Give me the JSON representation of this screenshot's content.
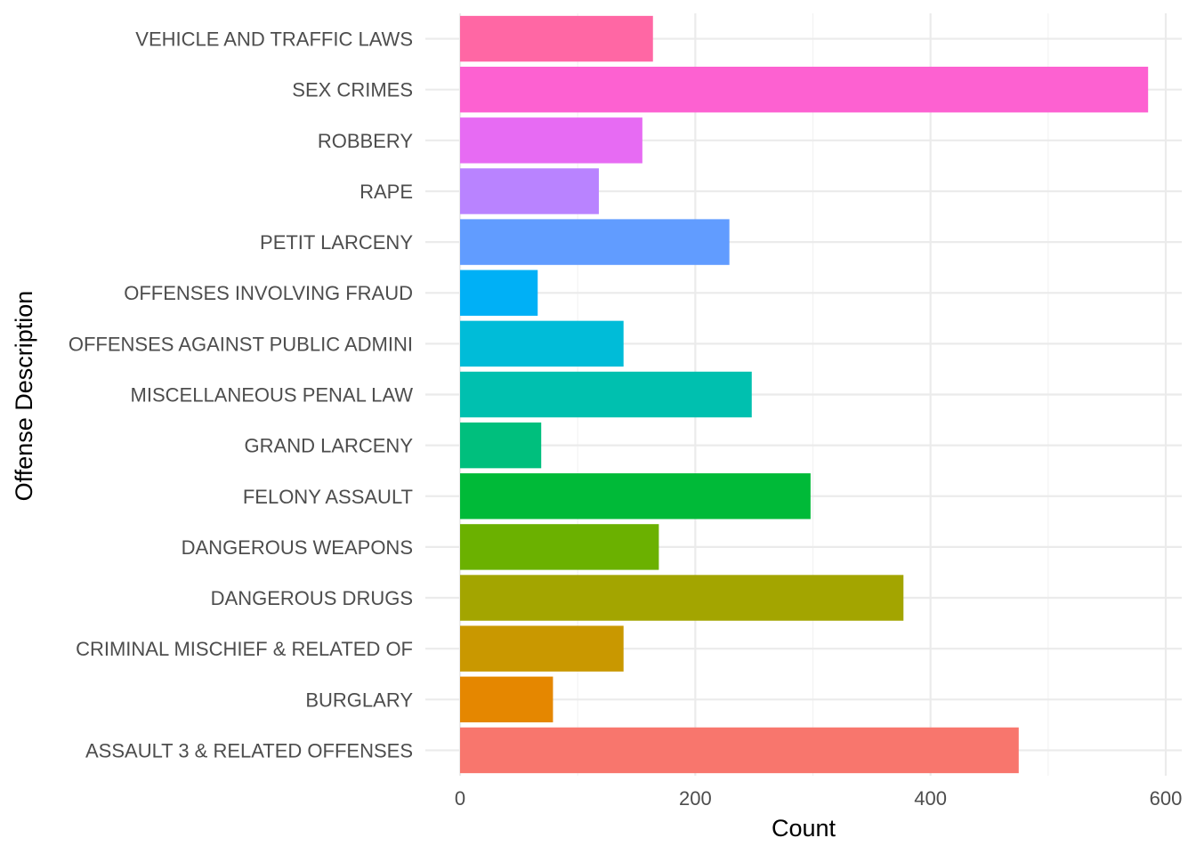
{
  "chart_data": {
    "type": "bar",
    "orientation": "horizontal",
    "title": "",
    "xlabel": "Count",
    "ylabel": "Offense Description",
    "xlim": [
      0,
      610
    ],
    "x_ticks": [
      0,
      200,
      400,
      600
    ],
    "grid": true,
    "legend": "none",
    "categories": [
      "ASSAULT 3 & RELATED OFFENSES",
      "BURGLARY",
      "CRIMINAL MISCHIEF & RELATED OF",
      "DANGEROUS DRUGS",
      "DANGEROUS WEAPONS",
      "FELONY ASSAULT",
      "GRAND LARCENY",
      "MISCELLANEOUS PENAL LAW",
      "OFFENSES AGAINST PUBLIC ADMINI",
      "OFFENSES INVOLVING FRAUD",
      "PETIT LARCENY",
      "RAPE",
      "ROBBERY",
      "SEX CRIMES",
      "VEHICLE AND TRAFFIC LAWS"
    ],
    "values": [
      475,
      79,
      139,
      377,
      169,
      298,
      69,
      248,
      139,
      66,
      229,
      118,
      155,
      585,
      164
    ],
    "colors": [
      "#F8766D",
      "#E58700",
      "#C99800",
      "#A3A500",
      "#6BB100",
      "#00BA38",
      "#00BF7D",
      "#00C0AF",
      "#00BCD8",
      "#00B0F6",
      "#619CFF",
      "#B983FF",
      "#E76BF3",
      "#FD61D1",
      "#FF67A4"
    ]
  }
}
